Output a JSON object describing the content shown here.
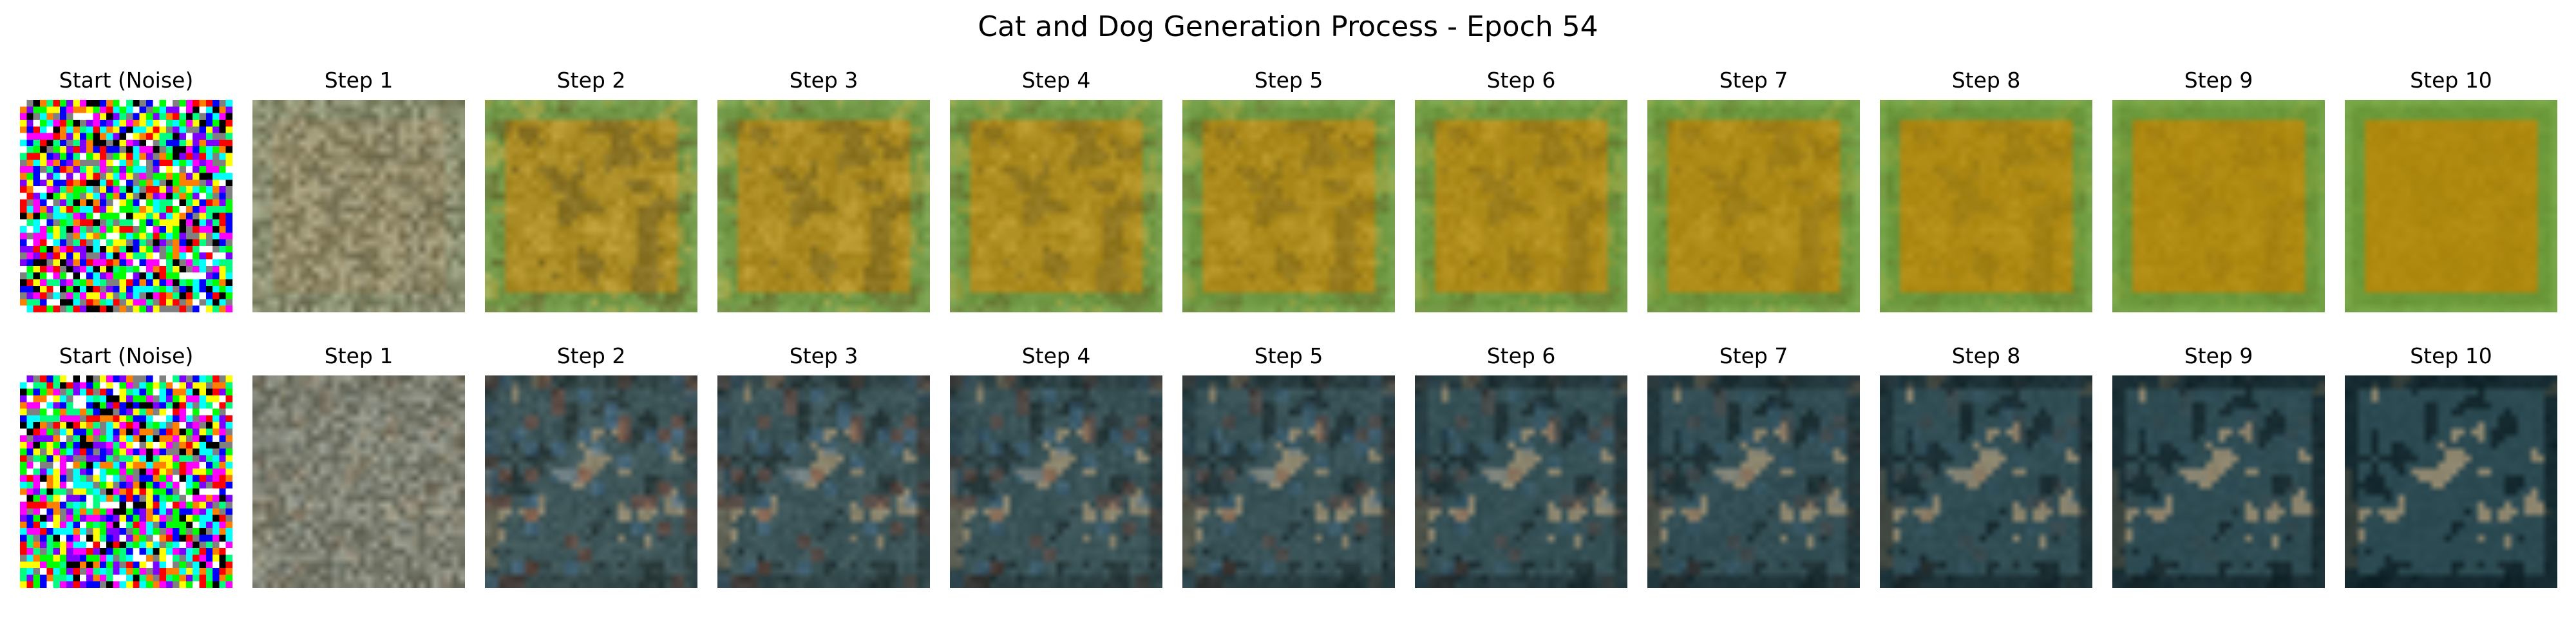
{
  "figure": {
    "title": "Cat and Dog Generation Process - Epoch 54"
  },
  "rows": [
    {
      "panels": [
        {
          "label": "Start (Noise)"
        },
        {
          "label": "Step 1"
        },
        {
          "label": "Step 2"
        },
        {
          "label": "Step 3"
        },
        {
          "label": "Step 4"
        },
        {
          "label": "Step 5"
        },
        {
          "label": "Step 6"
        },
        {
          "label": "Step 7"
        },
        {
          "label": "Step 8"
        },
        {
          "label": "Step 9"
        },
        {
          "label": "Step 10"
        }
      ]
    },
    {
      "panels": [
        {
          "label": "Start (Noise)"
        },
        {
          "label": "Step 1"
        },
        {
          "label": "Step 2"
        },
        {
          "label": "Step 3"
        },
        {
          "label": "Step 4"
        },
        {
          "label": "Step 5"
        },
        {
          "label": "Step 6"
        },
        {
          "label": "Step 7"
        },
        {
          "label": "Step 8"
        },
        {
          "label": "Step 9"
        },
        {
          "label": "Step 10"
        }
      ]
    }
  ],
  "palettes": {
    "row1": {
      "center": "#b08a0e",
      "border": "#6b9a3a",
      "dark": "#5a4a10",
      "light": "#e0b83a"
    },
    "row2": {
      "base": "#2c4a52",
      "dark": "#0d1f24",
      "light": "#b8a07a",
      "accent_blue": "#3a6fa0",
      "accent_red": "#7a3020"
    },
    "noise": [
      "#ff00ff",
      "#00ffff",
      "#ffff00",
      "#ff0000",
      "#00ff00",
      "#0000ff",
      "#000000",
      "#ffffff",
      "#ff8000",
      "#8000ff",
      "#00ff80",
      "#808080"
    ]
  }
}
